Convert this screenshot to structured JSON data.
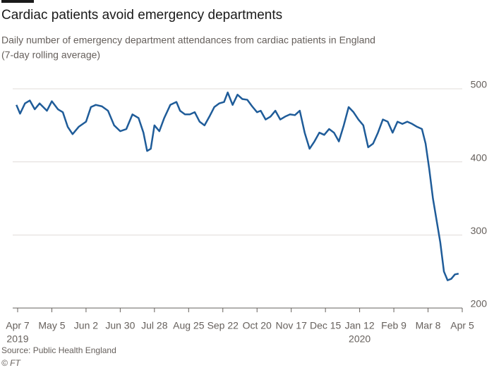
{
  "chart_data": {
    "type": "line",
    "title": "Cardiac patients avoid emergency departments",
    "subtitle": [
      "Daily number of emergency department attendances from cardiac patients in England",
      "(7-day rolling average)"
    ],
    "source": "Source: Public Health England",
    "credit": "© FT",
    "x": [
      "2019-04-06",
      "2019-04-09",
      "2019-04-13",
      "2019-04-17",
      "2019-04-21",
      "2019-04-25",
      "2019-05-01",
      "2019-05-05",
      "2019-05-10",
      "2019-05-14",
      "2019-05-18",
      "2019-05-22",
      "2019-05-27",
      "2019-06-02",
      "2019-06-06",
      "2019-06-10",
      "2019-06-15",
      "2019-06-20",
      "2019-06-25",
      "2019-06-30",
      "2019-07-05",
      "2019-07-10",
      "2019-07-15",
      "2019-07-19",
      "2019-07-22",
      "2019-07-25",
      "2019-07-28",
      "2019-08-01",
      "2019-08-05",
      "2019-08-10",
      "2019-08-15",
      "2019-08-18",
      "2019-08-22",
      "2019-08-26",
      "2019-08-30",
      "2019-09-03",
      "2019-09-07",
      "2019-09-11",
      "2019-09-15",
      "2019-09-19",
      "2019-09-23",
      "2019-09-26",
      "2019-09-30",
      "2019-10-04",
      "2019-10-08",
      "2019-10-12",
      "2019-10-16",
      "2019-10-20",
      "2019-10-23",
      "2019-10-27",
      "2019-10-31",
      "2019-11-04",
      "2019-11-08",
      "2019-11-12",
      "2019-11-16",
      "2019-11-20",
      "2019-11-24",
      "2019-11-28",
      "2019-12-02",
      "2019-12-06",
      "2019-12-10",
      "2019-12-14",
      "2019-12-18",
      "2019-12-22",
      "2019-12-26",
      "2019-12-30",
      "2020-01-03",
      "2020-01-07",
      "2020-01-11",
      "2020-01-15",
      "2020-01-19",
      "2020-01-23",
      "2020-01-27",
      "2020-01-31",
      "2020-02-04",
      "2020-02-08",
      "2020-02-12",
      "2020-02-16",
      "2020-02-20",
      "2020-02-24",
      "2020-02-28",
      "2020-03-03",
      "2020-03-06",
      "2020-03-09",
      "2020-03-12",
      "2020-03-15",
      "2020-03-18",
      "2020-03-21",
      "2020-03-24",
      "2020-03-27",
      "2020-03-30",
      "2020-04-02"
    ],
    "series": [
      {
        "name": "Cardiac ED attendances",
        "color": "#1f5c99",
        "values": [
          478,
          466,
          480,
          484,
          472,
          480,
          470,
          483,
          472,
          468,
          448,
          438,
          448,
          455,
          475,
          478,
          476,
          470,
          450,
          442,
          445,
          465,
          460,
          440,
          415,
          418,
          450,
          442,
          460,
          478,
          482,
          470,
          465,
          465,
          468,
          455,
          450,
          462,
          475,
          480,
          482,
          495,
          478,
          492,
          486,
          485,
          476,
          468,
          470,
          458,
          462,
          470,
          458,
          462,
          465,
          464,
          470,
          440,
          418,
          428,
          440,
          437,
          445,
          440,
          428,
          450,
          475,
          468,
          458,
          450,
          420,
          425,
          440,
          458,
          455,
          440,
          455,
          452,
          455,
          452,
          448,
          445,
          425,
          390,
          350,
          320,
          290,
          250,
          238,
          240,
          246,
          247
        ]
      }
    ],
    "xlim": [
      "2019-04-01",
      "2020-04-05"
    ],
    "xticks": [
      {
        "value": "2019-04-07",
        "label": "Apr 7"
      },
      {
        "value": "2019-05-05",
        "label": "May 5"
      },
      {
        "value": "2019-06-02",
        "label": "Jun 2"
      },
      {
        "value": "2019-06-30",
        "label": "Jun 30"
      },
      {
        "value": "2019-07-28",
        "label": "Jul 28"
      },
      {
        "value": "2019-08-25",
        "label": "Aug 25"
      },
      {
        "value": "2019-09-22",
        "label": "Sep 22"
      },
      {
        "value": "2019-10-20",
        "label": "Oct 20"
      },
      {
        "value": "2019-11-17",
        "label": "Nov 17"
      },
      {
        "value": "2019-12-15",
        "label": "Dec 15"
      },
      {
        "value": "2020-01-12",
        "label": "Jan 12"
      },
      {
        "value": "2020-02-09",
        "label": "Feb 9"
      },
      {
        "value": "2020-03-08",
        "label": "Mar 8"
      },
      {
        "value": "2020-04-05",
        "label": "Apr 5"
      }
    ],
    "x_year_labels": [
      {
        "value": "2019-04-07",
        "label": "2019"
      },
      {
        "value": "2020-01-12",
        "label": "2020"
      }
    ],
    "ylim": [
      200,
      500
    ],
    "yticks": [
      200,
      300,
      400,
      500
    ],
    "grid": true
  }
}
